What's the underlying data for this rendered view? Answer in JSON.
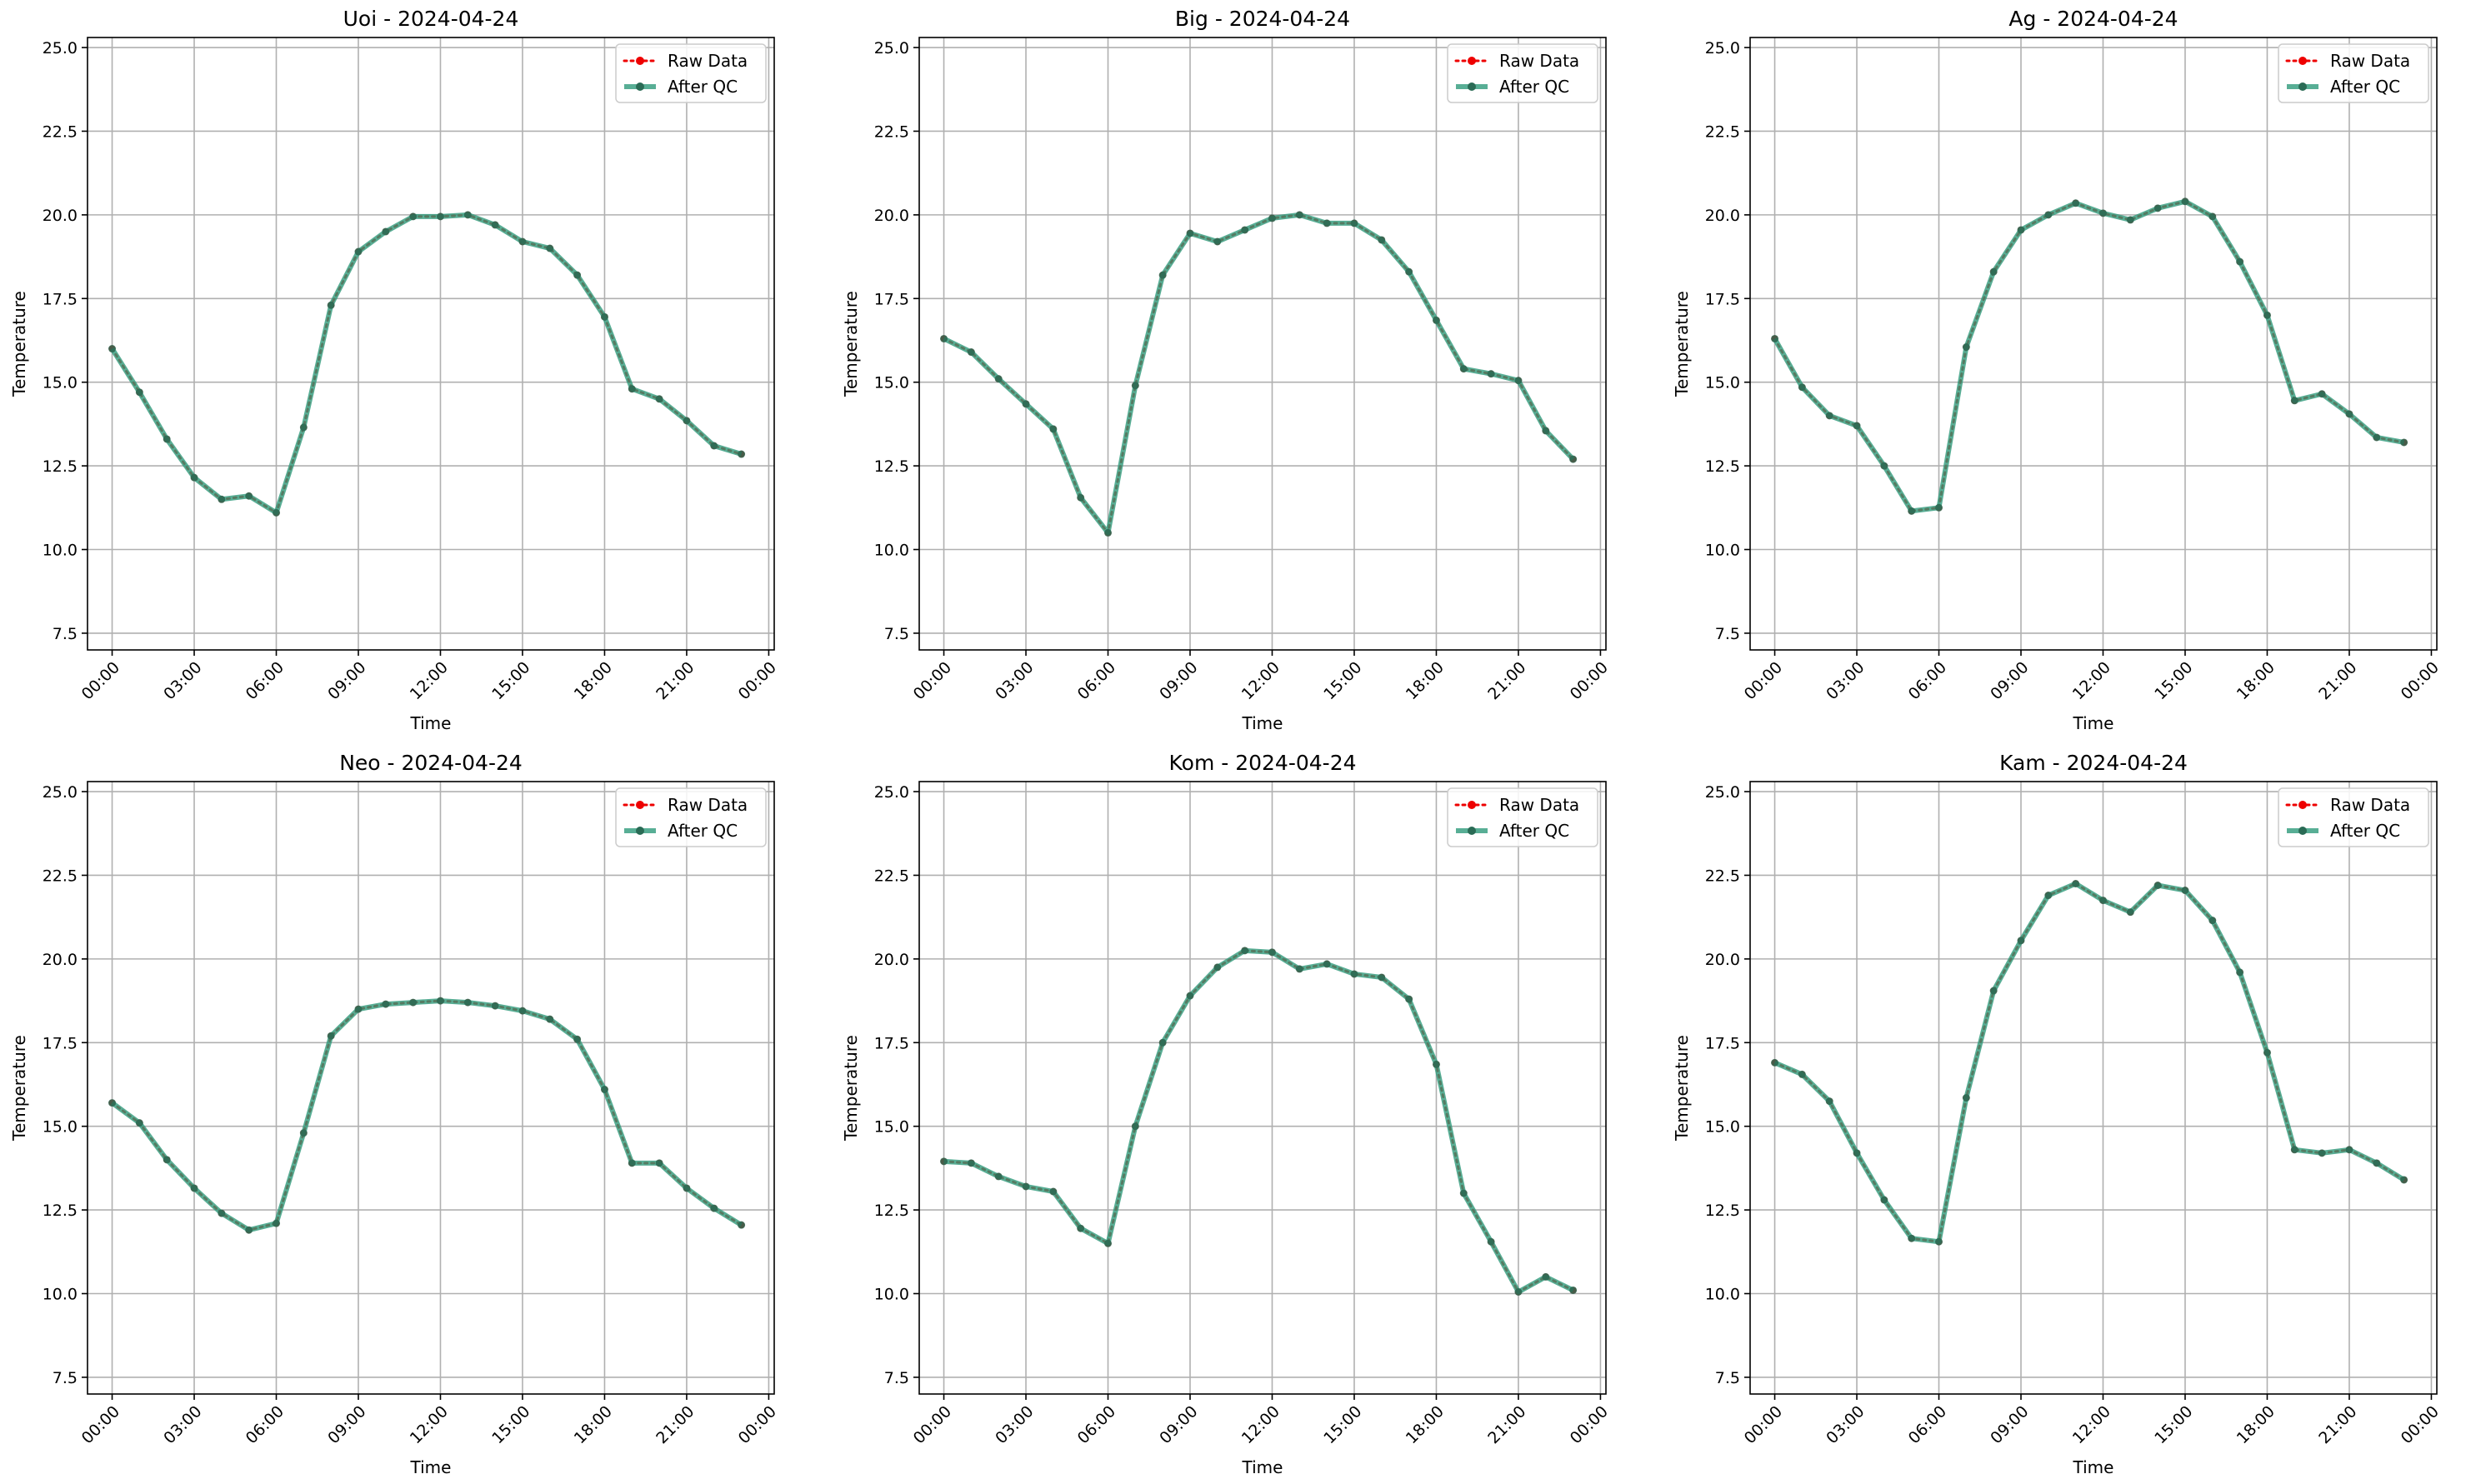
{
  "colors": {
    "raw": "#ee0000",
    "qc": "#2e9a7a",
    "marker": "#2a6b55"
  },
  "chart_data": [
    {
      "type": "line",
      "title": "Uoi - 2024-04-24",
      "xlabel": "Time",
      "ylabel": "Temperature",
      "ylim": [
        7.0,
        25.3
      ],
      "xlim": [
        -0.9,
        24.2
      ],
      "yticks": [
        "7.5",
        "10.0",
        "12.5",
        "15.0",
        "17.5",
        "20.0",
        "22.5",
        "25.0"
      ],
      "xticks": [
        "00:00",
        "03:00",
        "06:00",
        "09:00",
        "12:00",
        "15:00",
        "18:00",
        "21:00",
        "00:00"
      ],
      "legend": [
        "Raw Data",
        "After QC"
      ],
      "legend_position": "upper right",
      "grid": true,
      "hours": [
        0,
        1,
        2,
        3,
        4,
        5,
        6,
        7,
        8,
        9,
        10,
        11,
        12,
        13,
        14,
        15,
        16,
        17,
        18,
        19,
        20,
        21,
        22,
        23
      ],
      "series": [
        {
          "name": "Raw Data",
          "values": [
            16.0,
            14.7,
            13.3,
            12.15,
            11.5,
            11.6,
            11.1,
            13.65,
            17.3,
            18.9,
            19.5,
            19.95,
            19.95,
            20.0,
            19.7,
            19.2,
            19.0,
            18.2,
            16.95,
            14.8,
            14.5,
            13.85,
            13.1,
            12.85
          ]
        },
        {
          "name": "After QC",
          "values": [
            16.0,
            14.7,
            13.3,
            12.15,
            11.5,
            11.6,
            11.1,
            13.65,
            17.3,
            18.9,
            19.5,
            19.95,
            19.95,
            20.0,
            19.7,
            19.2,
            19.0,
            18.2,
            16.95,
            14.8,
            14.5,
            13.85,
            13.1,
            12.85
          ]
        }
      ]
    },
    {
      "type": "line",
      "title": "Big - 2024-04-24",
      "xlabel": "Time",
      "ylabel": "Temperature",
      "ylim": [
        7.0,
        25.3
      ],
      "xlim": [
        -0.9,
        24.2
      ],
      "yticks": [
        "7.5",
        "10.0",
        "12.5",
        "15.0",
        "17.5",
        "20.0",
        "22.5",
        "25.0"
      ],
      "xticks": [
        "00:00",
        "03:00",
        "06:00",
        "09:00",
        "12:00",
        "15:00",
        "18:00",
        "21:00",
        "00:00"
      ],
      "legend": [
        "Raw Data",
        "After QC"
      ],
      "legend_position": "upper right",
      "grid": true,
      "hours": [
        0,
        1,
        2,
        3,
        4,
        5,
        6,
        7,
        8,
        9,
        10,
        11,
        12,
        13,
        14,
        15,
        16,
        17,
        18,
        19,
        20,
        21,
        22,
        23
      ],
      "series": [
        {
          "name": "Raw Data",
          "values": [
            16.3,
            15.9,
            15.1,
            14.35,
            13.6,
            11.55,
            10.5,
            14.9,
            18.2,
            19.45,
            19.2,
            19.55,
            19.9,
            20.0,
            19.75,
            19.75,
            19.25,
            18.3,
            16.85,
            15.4,
            15.25,
            15.05,
            13.55,
            12.7
          ]
        },
        {
          "name": "After QC",
          "values": [
            16.3,
            15.9,
            15.1,
            14.35,
            13.6,
            11.55,
            10.5,
            14.9,
            18.2,
            19.45,
            19.2,
            19.55,
            19.9,
            20.0,
            19.75,
            19.75,
            19.25,
            18.3,
            16.85,
            15.4,
            15.25,
            15.05,
            13.55,
            12.7
          ]
        }
      ]
    },
    {
      "type": "line",
      "title": "Ag - 2024-04-24",
      "xlabel": "Time",
      "ylabel": "Temperature",
      "ylim": [
        7.0,
        25.3
      ],
      "xlim": [
        -0.9,
        24.2
      ],
      "yticks": [
        "7.5",
        "10.0",
        "12.5",
        "15.0",
        "17.5",
        "20.0",
        "22.5",
        "25.0"
      ],
      "xticks": [
        "00:00",
        "03:00",
        "06:00",
        "09:00",
        "12:00",
        "15:00",
        "18:00",
        "21:00",
        "00:00"
      ],
      "legend": [
        "Raw Data",
        "After QC"
      ],
      "legend_position": "upper right",
      "grid": true,
      "hours": [
        0,
        1,
        2,
        3,
        4,
        5,
        6,
        7,
        8,
        9,
        10,
        11,
        12,
        13,
        14,
        15,
        16,
        17,
        18,
        19,
        20,
        21,
        22,
        23
      ],
      "series": [
        {
          "name": "Raw Data",
          "values": [
            16.3,
            14.85,
            14.0,
            13.7,
            12.5,
            11.15,
            11.25,
            16.05,
            18.3,
            19.55,
            20.0,
            20.35,
            20.05,
            19.85,
            20.2,
            20.4,
            19.95,
            18.6,
            17.0,
            14.45,
            14.65,
            14.05,
            13.35,
            13.2
          ]
        },
        {
          "name": "After QC",
          "values": [
            16.3,
            14.85,
            14.0,
            13.7,
            12.5,
            11.15,
            11.25,
            16.05,
            18.3,
            19.55,
            20.0,
            20.35,
            20.05,
            19.85,
            20.2,
            20.4,
            19.95,
            18.6,
            17.0,
            14.45,
            14.65,
            14.05,
            13.35,
            13.2
          ]
        }
      ]
    },
    {
      "type": "line",
      "title": "Neo - 2024-04-24",
      "xlabel": "Time",
      "ylabel": "Temperature",
      "ylim": [
        7.0,
        25.3
      ],
      "xlim": [
        -0.9,
        24.2
      ],
      "yticks": [
        "7.5",
        "10.0",
        "12.5",
        "15.0",
        "17.5",
        "20.0",
        "22.5",
        "25.0"
      ],
      "xticks": [
        "00:00",
        "03:00",
        "06:00",
        "09:00",
        "12:00",
        "15:00",
        "18:00",
        "21:00",
        "00:00"
      ],
      "legend": [
        "Raw Data",
        "After QC"
      ],
      "legend_position": "upper right",
      "grid": true,
      "hours": [
        0,
        1,
        2,
        3,
        4,
        5,
        6,
        7,
        8,
        9,
        10,
        11,
        12,
        13,
        14,
        15,
        16,
        17,
        18,
        19,
        20,
        21,
        22,
        23
      ],
      "series": [
        {
          "name": "Raw Data",
          "values": [
            15.7,
            15.1,
            14.0,
            13.15,
            12.4,
            11.9,
            12.1,
            14.8,
            17.7,
            18.5,
            18.65,
            18.7,
            18.75,
            18.7,
            18.6,
            18.45,
            18.2,
            17.6,
            16.1,
            13.9,
            13.9,
            13.15,
            12.55,
            12.05
          ]
        },
        {
          "name": "After QC",
          "values": [
            15.7,
            15.1,
            14.0,
            13.15,
            12.4,
            11.9,
            12.1,
            14.8,
            17.7,
            18.5,
            18.65,
            18.7,
            18.75,
            18.7,
            18.6,
            18.45,
            18.2,
            17.6,
            16.1,
            13.9,
            13.9,
            13.15,
            12.55,
            12.05
          ]
        }
      ]
    },
    {
      "type": "line",
      "title": "Kom - 2024-04-24",
      "xlabel": "Time",
      "ylabel": "Temperature",
      "ylim": [
        7.0,
        25.3
      ],
      "xlim": [
        -0.9,
        24.2
      ],
      "yticks": [
        "7.5",
        "10.0",
        "12.5",
        "15.0",
        "17.5",
        "20.0",
        "22.5",
        "25.0"
      ],
      "xticks": [
        "00:00",
        "03:00",
        "06:00",
        "09:00",
        "12:00",
        "15:00",
        "18:00",
        "21:00",
        "00:00"
      ],
      "legend": [
        "Raw Data",
        "After QC"
      ],
      "legend_position": "upper right",
      "grid": true,
      "hours": [
        0,
        1,
        2,
        3,
        4,
        5,
        6,
        7,
        8,
        9,
        10,
        11,
        12,
        13,
        14,
        15,
        16,
        17,
        18,
        19,
        20,
        21,
        22,
        23
      ],
      "series": [
        {
          "name": "Raw Data",
          "values": [
            13.95,
            13.9,
            13.5,
            13.2,
            13.05,
            11.95,
            11.5,
            15.0,
            17.5,
            18.9,
            19.75,
            20.25,
            20.2,
            19.7,
            19.85,
            19.55,
            19.45,
            18.8,
            16.85,
            13.0,
            11.55,
            10.05,
            10.5,
            10.1
          ]
        },
        {
          "name": "After QC",
          "values": [
            13.95,
            13.9,
            13.5,
            13.2,
            13.05,
            11.95,
            11.5,
            15.0,
            17.5,
            18.9,
            19.75,
            20.25,
            20.2,
            19.7,
            19.85,
            19.55,
            19.45,
            18.8,
            16.85,
            13.0,
            11.55,
            10.05,
            10.5,
            10.1
          ]
        }
      ]
    },
    {
      "type": "line",
      "title": "Kam - 2024-04-24",
      "xlabel": "Time",
      "ylabel": "Temperature",
      "ylim": [
        7.0,
        25.3
      ],
      "xlim": [
        -0.9,
        24.2
      ],
      "yticks": [
        "7.5",
        "10.0",
        "12.5",
        "15.0",
        "17.5",
        "20.0",
        "22.5",
        "25.0"
      ],
      "xticks": [
        "00:00",
        "03:00",
        "06:00",
        "09:00",
        "12:00",
        "15:00",
        "18:00",
        "21:00",
        "00:00"
      ],
      "legend": [
        "Raw Data",
        "After QC"
      ],
      "legend_position": "upper right",
      "grid": true,
      "hours": [
        0,
        1,
        2,
        3,
        4,
        5,
        6,
        7,
        8,
        9,
        10,
        11,
        12,
        13,
        14,
        15,
        16,
        17,
        18,
        19,
        20,
        21,
        22,
        23
      ],
      "series": [
        {
          "name": "Raw Data",
          "values": [
            16.9,
            16.55,
            15.75,
            14.2,
            12.8,
            11.65,
            11.55,
            15.85,
            19.05,
            20.55,
            21.9,
            22.25,
            21.75,
            21.4,
            22.2,
            22.05,
            21.15,
            19.6,
            17.2,
            14.3,
            14.2,
            14.3,
            13.9,
            13.4
          ]
        },
        {
          "name": "After QC",
          "values": [
            16.9,
            16.55,
            15.75,
            14.2,
            12.8,
            11.65,
            11.55,
            15.85,
            19.05,
            20.55,
            21.9,
            22.25,
            21.75,
            21.4,
            22.2,
            22.05,
            21.15,
            19.6,
            17.2,
            14.3,
            14.2,
            14.3,
            13.9,
            13.4
          ]
        }
      ]
    }
  ]
}
